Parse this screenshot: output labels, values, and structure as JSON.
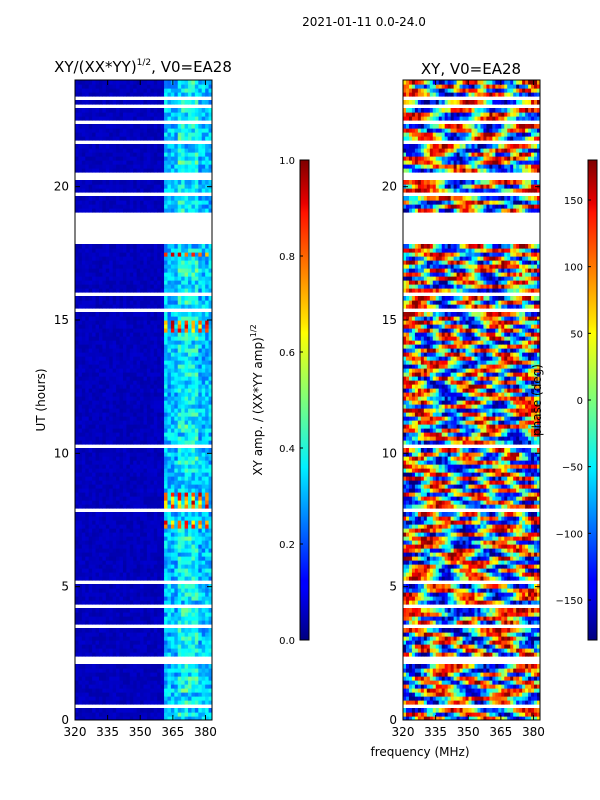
{
  "figure": {
    "suptitle": "2021-01-11 0.0-24.0",
    "xlabel_shared": "frequency (MHz)"
  },
  "chart_data": [
    {
      "type": "heatmap",
      "title_main": "XY/(XX*YY)",
      "title_exp": "1/2",
      "title_suffix": ", V0=EA28",
      "ylabel": "UT (hours)",
      "xlim": [
        320,
        383
      ],
      "ylim": [
        0,
        24
      ],
      "xticks": [
        "320",
        "335",
        "350",
        "365",
        "380"
      ],
      "xtick_values": [
        320,
        335,
        350,
        365,
        380
      ],
      "yticks": [
        "0",
        "5",
        "10",
        "15",
        "20"
      ],
      "ytick_values": [
        0,
        5,
        10,
        15,
        20
      ],
      "active_band_mhz": [
        361,
        382
      ],
      "high_amp_band_mhz": [
        368,
        376
      ],
      "flagged_hours": [
        [
          0.45,
          0.6
        ],
        [
          1.15,
          1.25
        ],
        [
          1.6,
          1.7
        ],
        [
          2.05,
          2.45
        ],
        [
          3.1,
          3.2
        ],
        [
          3.5,
          3.55
        ],
        [
          4.25,
          4.3
        ],
        [
          5.1,
          5.2
        ],
        [
          5.65,
          5.7
        ],
        [
          6.4,
          6.45
        ],
        [
          7.05,
          7.1
        ],
        [
          7.8,
          7.95
        ],
        [
          8.5,
          8.55
        ],
        [
          9.1,
          9.15
        ],
        [
          9.55,
          9.6
        ],
        [
          10.25,
          10.4
        ],
        [
          11.4,
          11.45
        ],
        [
          12.3,
          12.35
        ],
        [
          13.3,
          13.35
        ],
        [
          14.4,
          14.45
        ],
        [
          15.35,
          15.45
        ],
        [
          15.6,
          15.65
        ],
        [
          15.9,
          16.0
        ],
        [
          16.6,
          16.65
        ],
        [
          17.2,
          17.3
        ],
        [
          17.8,
          19.1
        ],
        [
          19.7,
          19.8
        ],
        [
          20.2,
          20.5
        ],
        [
          21.6,
          21.7
        ],
        [
          22.4,
          22.5
        ],
        [
          22.9,
          23.05
        ],
        [
          23.2,
          23.35
        ]
      ],
      "hot_rows": [
        [
          7.15,
          7.55
        ],
        [
          8.0,
          8.6
        ],
        [
          14.6,
          15.05
        ],
        [
          17.45,
          17.6
        ]
      ]
    },
    {
      "type": "colorbar",
      "label_main": "XY amp. / (XX*YY amp)",
      "label_exp": "1/2",
      "range": [
        0.0,
        1.0
      ],
      "ticks": [
        "0.0",
        "0.2",
        "0.4",
        "0.6",
        "0.8",
        "1.0"
      ],
      "tick_values": [
        0.0,
        0.2,
        0.4,
        0.6,
        0.8,
        1.0
      ],
      "colormap": "jet"
    },
    {
      "type": "heatmap",
      "title": "XY, V0=EA28",
      "xlim": [
        320,
        383
      ],
      "ylim": [
        0,
        24
      ],
      "xticks": [
        "320",
        "335",
        "350",
        "365",
        "380"
      ],
      "xtick_values": [
        320,
        335,
        350,
        365,
        380
      ],
      "yticks": [
        "0",
        "5",
        "10",
        "15",
        "20"
      ],
      "ytick_values": [
        0,
        5,
        10,
        15,
        20
      ],
      "flagged_hours": [
        [
          0.45,
          0.6
        ],
        [
          1.15,
          1.25
        ],
        [
          1.6,
          1.7
        ],
        [
          2.05,
          2.45
        ],
        [
          3.1,
          3.2
        ],
        [
          3.5,
          3.55
        ],
        [
          4.25,
          4.3
        ],
        [
          5.1,
          5.2
        ],
        [
          5.65,
          5.7
        ],
        [
          6.4,
          6.45
        ],
        [
          7.05,
          7.1
        ],
        [
          7.8,
          7.95
        ],
        [
          8.5,
          8.55
        ],
        [
          9.1,
          9.15
        ],
        [
          9.55,
          9.6
        ],
        [
          10.25,
          10.4
        ],
        [
          11.4,
          11.45
        ],
        [
          12.3,
          12.35
        ],
        [
          13.3,
          13.35
        ],
        [
          14.4,
          14.45
        ],
        [
          15.35,
          15.45
        ],
        [
          15.6,
          15.65
        ],
        [
          15.9,
          16.0
        ],
        [
          16.6,
          16.65
        ],
        [
          17.2,
          17.3
        ],
        [
          17.8,
          19.1
        ],
        [
          19.7,
          19.8
        ],
        [
          20.2,
          20.5
        ],
        [
          21.6,
          21.7
        ],
        [
          22.4,
          22.5
        ],
        [
          22.9,
          23.05
        ],
        [
          23.2,
          23.35
        ]
      ]
    },
    {
      "type": "colorbar",
      "label": "phase (deg)",
      "range": [
        -180,
        180
      ],
      "ticks": [
        "−150",
        "−100",
        "−50",
        "0",
        "50",
        "100",
        "150"
      ],
      "tick_values": [
        -150,
        -100,
        -50,
        0,
        50,
        100,
        150
      ],
      "colormap": "jet"
    }
  ]
}
